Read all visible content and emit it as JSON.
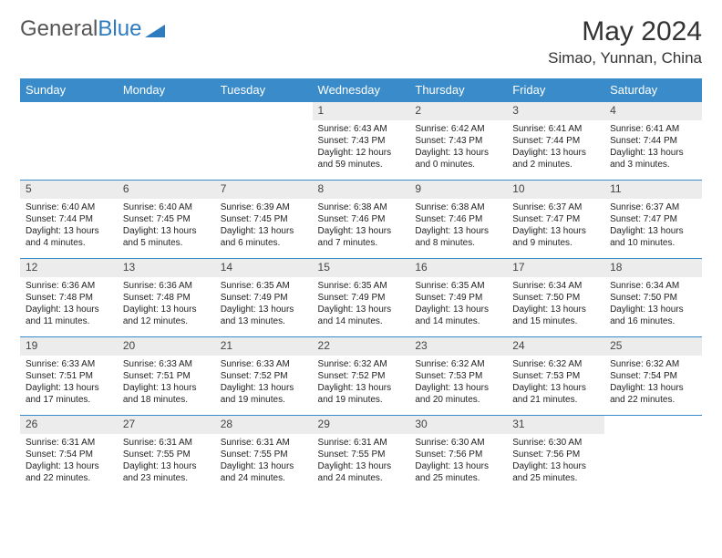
{
  "logo": {
    "text1": "General",
    "text2": "Blue"
  },
  "title": "May 2024",
  "location": "Simao, Yunnan, China",
  "colors": {
    "header_bg": "#3a8bc9",
    "header_fg": "#ffffff",
    "daynum_bg": "#ececec",
    "border": "#3a8bc9",
    "logo_gray": "#555555",
    "logo_blue": "#2e7bbf"
  },
  "day_headers": [
    "Sunday",
    "Monday",
    "Tuesday",
    "Wednesday",
    "Thursday",
    "Friday",
    "Saturday"
  ],
  "weeks": [
    [
      {
        "n": "",
        "s": "",
        "t": "",
        "d": "",
        "empty": true
      },
      {
        "n": "",
        "s": "",
        "t": "",
        "d": "",
        "empty": true
      },
      {
        "n": "",
        "s": "",
        "t": "",
        "d": "",
        "empty": true
      },
      {
        "n": "1",
        "s": "Sunrise: 6:43 AM",
        "t": "Sunset: 7:43 PM",
        "d": "Daylight: 12 hours and 59 minutes."
      },
      {
        "n": "2",
        "s": "Sunrise: 6:42 AM",
        "t": "Sunset: 7:43 PM",
        "d": "Daylight: 13 hours and 0 minutes."
      },
      {
        "n": "3",
        "s": "Sunrise: 6:41 AM",
        "t": "Sunset: 7:44 PM",
        "d": "Daylight: 13 hours and 2 minutes."
      },
      {
        "n": "4",
        "s": "Sunrise: 6:41 AM",
        "t": "Sunset: 7:44 PM",
        "d": "Daylight: 13 hours and 3 minutes."
      }
    ],
    [
      {
        "n": "5",
        "s": "Sunrise: 6:40 AM",
        "t": "Sunset: 7:44 PM",
        "d": "Daylight: 13 hours and 4 minutes."
      },
      {
        "n": "6",
        "s": "Sunrise: 6:40 AM",
        "t": "Sunset: 7:45 PM",
        "d": "Daylight: 13 hours and 5 minutes."
      },
      {
        "n": "7",
        "s": "Sunrise: 6:39 AM",
        "t": "Sunset: 7:45 PM",
        "d": "Daylight: 13 hours and 6 minutes."
      },
      {
        "n": "8",
        "s": "Sunrise: 6:38 AM",
        "t": "Sunset: 7:46 PM",
        "d": "Daylight: 13 hours and 7 minutes."
      },
      {
        "n": "9",
        "s": "Sunrise: 6:38 AM",
        "t": "Sunset: 7:46 PM",
        "d": "Daylight: 13 hours and 8 minutes."
      },
      {
        "n": "10",
        "s": "Sunrise: 6:37 AM",
        "t": "Sunset: 7:47 PM",
        "d": "Daylight: 13 hours and 9 minutes."
      },
      {
        "n": "11",
        "s": "Sunrise: 6:37 AM",
        "t": "Sunset: 7:47 PM",
        "d": "Daylight: 13 hours and 10 minutes."
      }
    ],
    [
      {
        "n": "12",
        "s": "Sunrise: 6:36 AM",
        "t": "Sunset: 7:48 PM",
        "d": "Daylight: 13 hours and 11 minutes."
      },
      {
        "n": "13",
        "s": "Sunrise: 6:36 AM",
        "t": "Sunset: 7:48 PM",
        "d": "Daylight: 13 hours and 12 minutes."
      },
      {
        "n": "14",
        "s": "Sunrise: 6:35 AM",
        "t": "Sunset: 7:49 PM",
        "d": "Daylight: 13 hours and 13 minutes."
      },
      {
        "n": "15",
        "s": "Sunrise: 6:35 AM",
        "t": "Sunset: 7:49 PM",
        "d": "Daylight: 13 hours and 14 minutes."
      },
      {
        "n": "16",
        "s": "Sunrise: 6:35 AM",
        "t": "Sunset: 7:49 PM",
        "d": "Daylight: 13 hours and 14 minutes."
      },
      {
        "n": "17",
        "s": "Sunrise: 6:34 AM",
        "t": "Sunset: 7:50 PM",
        "d": "Daylight: 13 hours and 15 minutes."
      },
      {
        "n": "18",
        "s": "Sunrise: 6:34 AM",
        "t": "Sunset: 7:50 PM",
        "d": "Daylight: 13 hours and 16 minutes."
      }
    ],
    [
      {
        "n": "19",
        "s": "Sunrise: 6:33 AM",
        "t": "Sunset: 7:51 PM",
        "d": "Daylight: 13 hours and 17 minutes."
      },
      {
        "n": "20",
        "s": "Sunrise: 6:33 AM",
        "t": "Sunset: 7:51 PM",
        "d": "Daylight: 13 hours and 18 minutes."
      },
      {
        "n": "21",
        "s": "Sunrise: 6:33 AM",
        "t": "Sunset: 7:52 PM",
        "d": "Daylight: 13 hours and 19 minutes."
      },
      {
        "n": "22",
        "s": "Sunrise: 6:32 AM",
        "t": "Sunset: 7:52 PM",
        "d": "Daylight: 13 hours and 19 minutes."
      },
      {
        "n": "23",
        "s": "Sunrise: 6:32 AM",
        "t": "Sunset: 7:53 PM",
        "d": "Daylight: 13 hours and 20 minutes."
      },
      {
        "n": "24",
        "s": "Sunrise: 6:32 AM",
        "t": "Sunset: 7:53 PM",
        "d": "Daylight: 13 hours and 21 minutes."
      },
      {
        "n": "25",
        "s": "Sunrise: 6:32 AM",
        "t": "Sunset: 7:54 PM",
        "d": "Daylight: 13 hours and 22 minutes."
      }
    ],
    [
      {
        "n": "26",
        "s": "Sunrise: 6:31 AM",
        "t": "Sunset: 7:54 PM",
        "d": "Daylight: 13 hours and 22 minutes."
      },
      {
        "n": "27",
        "s": "Sunrise: 6:31 AM",
        "t": "Sunset: 7:55 PM",
        "d": "Daylight: 13 hours and 23 minutes."
      },
      {
        "n": "28",
        "s": "Sunrise: 6:31 AM",
        "t": "Sunset: 7:55 PM",
        "d": "Daylight: 13 hours and 24 minutes."
      },
      {
        "n": "29",
        "s": "Sunrise: 6:31 AM",
        "t": "Sunset: 7:55 PM",
        "d": "Daylight: 13 hours and 24 minutes."
      },
      {
        "n": "30",
        "s": "Sunrise: 6:30 AM",
        "t": "Sunset: 7:56 PM",
        "d": "Daylight: 13 hours and 25 minutes."
      },
      {
        "n": "31",
        "s": "Sunrise: 6:30 AM",
        "t": "Sunset: 7:56 PM",
        "d": "Daylight: 13 hours and 25 minutes."
      },
      {
        "n": "",
        "s": "",
        "t": "",
        "d": "",
        "empty": true
      }
    ]
  ]
}
